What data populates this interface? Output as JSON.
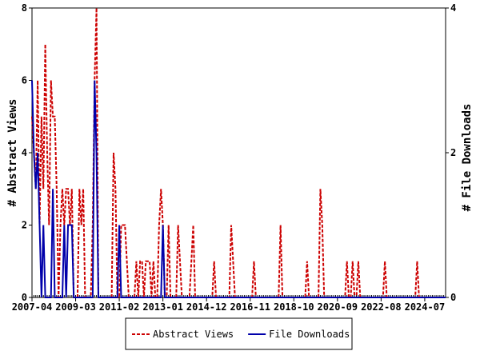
{
  "chart_data": {
    "type": "line",
    "ylabel": "# Abstract Views",
    "y2label": "# File Downloads",
    "ylim": [
      0,
      8
    ],
    "yticks": [
      0,
      2,
      4,
      6,
      8
    ],
    "y2lim": [
      0,
      4
    ],
    "y2ticks": [
      0,
      2,
      4
    ],
    "legend": "bottom",
    "categories": [
      "2007-04",
      null,
      null,
      null,
      null,
      null,
      null,
      null,
      null,
      null,
      null,
      null,
      null,
      null,
      null,
      null,
      null,
      null,
      null,
      null,
      null,
      null,
      null,
      "2009-03",
      null,
      null,
      null,
      null,
      null,
      null,
      null,
      null,
      null,
      null,
      null,
      null,
      null,
      null,
      null,
      null,
      null,
      null,
      null,
      null,
      null,
      null,
      "2011-02",
      null,
      null,
      null,
      null,
      null,
      null,
      null,
      null,
      null,
      null,
      null,
      null,
      null,
      null,
      null,
      null,
      null,
      null,
      null,
      null,
      null,
      null,
      "2013-01",
      null,
      null,
      null,
      null,
      null,
      null,
      null,
      null,
      null,
      null,
      null,
      null,
      null,
      null,
      null,
      null,
      null,
      null,
      null,
      null,
      null,
      null,
      "2014-12",
      null,
      null,
      null,
      null,
      null,
      null,
      null,
      null,
      null,
      null,
      null,
      null,
      null,
      null,
      null,
      null,
      null,
      null,
      null,
      null,
      null,
      null,
      "2016-11",
      null,
      null,
      null,
      null,
      null,
      null,
      null,
      null,
      null,
      null,
      null,
      null,
      null,
      null,
      null,
      null,
      null,
      null,
      null,
      null,
      null,
      null,
      "2018-10",
      null,
      null,
      null,
      null,
      null,
      null,
      null,
      null,
      null,
      null,
      null,
      null,
      null,
      null,
      null,
      null,
      null,
      null,
      null,
      null,
      null,
      null,
      "2020-09",
      null,
      null,
      null,
      null,
      null,
      null,
      null,
      null,
      null,
      null,
      null,
      null,
      null,
      null,
      null,
      null,
      null,
      null,
      null,
      null,
      null,
      null,
      "2022-08",
      null,
      null,
      null,
      null,
      null,
      null,
      null,
      null,
      null,
      null,
      null,
      null,
      null,
      null,
      null,
      null,
      null,
      null,
      null,
      null,
      null,
      null,
      "2024-07",
      null,
      null,
      null,
      null,
      null,
      null,
      null,
      null,
      null,
      null,
      null
    ],
    "series": [
      {
        "name": "Abstract Views",
        "color": "#cc0000",
        "dash": true,
        "values": [
          5,
          4,
          3,
          6,
          2,
          5,
          3,
          7,
          4,
          2,
          6,
          5,
          5,
          3,
          0,
          2,
          3,
          2,
          3,
          3,
          2,
          3,
          0,
          0,
          0,
          3,
          2,
          3,
          0,
          0,
          0,
          0,
          2,
          6,
          8,
          0,
          0,
          0,
          0,
          0,
          0,
          0,
          0,
          4,
          3,
          0,
          0,
          2,
          2,
          2,
          1,
          0,
          0,
          0,
          0,
          1,
          0,
          1,
          1,
          0,
          1,
          1,
          1,
          0,
          1,
          0,
          0,
          2,
          3,
          2,
          0,
          0,
          2,
          0,
          0,
          0,
          0,
          2,
          1,
          0,
          0,
          0,
          0,
          0,
          1,
          2,
          0,
          0,
          0,
          0,
          0,
          0,
          0,
          0,
          0,
          0,
          1,
          0,
          0,
          0,
          0,
          0,
          0,
          0,
          0,
          2,
          1,
          0,
          0,
          0,
          0,
          0,
          0,
          0,
          0,
          0,
          0,
          1,
          0,
          0,
          0,
          0,
          0,
          0,
          0,
          0,
          0,
          0,
          0,
          0,
          0,
          2,
          0,
          0,
          0,
          0,
          0,
          0,
          0,
          0,
          0,
          0,
          0,
          0,
          0,
          1,
          0,
          0,
          0,
          0,
          0,
          0,
          3,
          2,
          0,
          0,
          0,
          0,
          0,
          0,
          0,
          0,
          0,
          0,
          0,
          0,
          1,
          0,
          0,
          1,
          0,
          0,
          1,
          0,
          0,
          0,
          0,
          0,
          0,
          0,
          0,
          0,
          0,
          0,
          0,
          0,
          1,
          0,
          0,
          0,
          0,
          0,
          0,
          0,
          0,
          0,
          0,
          0,
          0,
          0,
          0,
          0,
          0,
          1,
          0,
          0,
          0,
          0,
          0,
          0,
          0,
          0,
          0,
          0,
          0,
          0,
          0,
          0,
          0
        ]
      },
      {
        "name": "File Downloads",
        "color": "#0000aa",
        "axis": "y2",
        "values": [
          3,
          2,
          1.5,
          2,
          1,
          0,
          1,
          0,
          0,
          0,
          0,
          1.5,
          0,
          0,
          0,
          0,
          0,
          1,
          0,
          1,
          1,
          1,
          0,
          0,
          0,
          0,
          0,
          0,
          0,
          0,
          0,
          0,
          0,
          3,
          2,
          0,
          0,
          0,
          0,
          0,
          0,
          0,
          0,
          0,
          0,
          0,
          1,
          0,
          0,
          0,
          0,
          0,
          0,
          0,
          0,
          0,
          0,
          0,
          0,
          0,
          0,
          0,
          0,
          0,
          0,
          0,
          0,
          0,
          0,
          1,
          0,
          0,
          0,
          0,
          0,
          0,
          0,
          0,
          0,
          0,
          0,
          0,
          0,
          0,
          0,
          0,
          0,
          0,
          0,
          0,
          0,
          0,
          0,
          0,
          0,
          0,
          0,
          0,
          0,
          0,
          0,
          0,
          0,
          0,
          0,
          0,
          0,
          0,
          0,
          0,
          0,
          0,
          0,
          0,
          0,
          0,
          0,
          0,
          0,
          0,
          0,
          0,
          0,
          0,
          0,
          0,
          0,
          0,
          0,
          0,
          0,
          0,
          0,
          0,
          0,
          0,
          0,
          0,
          0,
          0,
          0,
          0,
          0,
          0,
          0,
          0,
          0,
          0,
          0,
          0,
          0,
          0,
          0,
          0,
          0,
          0,
          0,
          0,
          0,
          0,
          0,
          0,
          0,
          0,
          0,
          0,
          0,
          0,
          0,
          0,
          0,
          0,
          0,
          0,
          0,
          0,
          0,
          0,
          0,
          0,
          0,
          0,
          0,
          0,
          0,
          0,
          0,
          0,
          0,
          0,
          0,
          0,
          0,
          0,
          0,
          0,
          0,
          0,
          0,
          0,
          0,
          0,
          0,
          0,
          0,
          0,
          0,
          0,
          0,
          0,
          0,
          0,
          0,
          0,
          0,
          0,
          0,
          0,
          0
        ]
      }
    ]
  }
}
